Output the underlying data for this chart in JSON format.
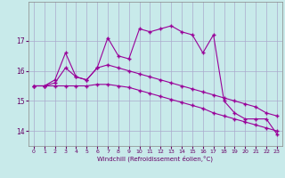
{
  "background_color": "#c8eaea",
  "grid_color": "#aaaacc",
  "line_color": "#990099",
  "marker": "+",
  "xlabel": "Windchill (Refroidissement éolien,°C)",
  "xlabel_color": "#660066",
  "tick_color": "#660066",
  "xlim": [
    -0.5,
    23.5
  ],
  "ylim": [
    13.5,
    18.3
  ],
  "yticks": [
    14,
    15,
    16,
    17
  ],
  "xticks": [
    0,
    1,
    2,
    3,
    4,
    5,
    6,
    7,
    8,
    9,
    10,
    11,
    12,
    13,
    14,
    15,
    16,
    17,
    18,
    19,
    20,
    21,
    22,
    23
  ],
  "series1_x": [
    0,
    1,
    2,
    3,
    4,
    5,
    6,
    7,
    8,
    9,
    10,
    11,
    12,
    13,
    14,
    15,
    16,
    17,
    18,
    19,
    20,
    21,
    22,
    23
  ],
  "series1_y": [
    15.5,
    15.5,
    15.7,
    16.6,
    15.8,
    15.7,
    16.1,
    17.1,
    16.5,
    16.4,
    17.4,
    17.3,
    17.4,
    17.5,
    17.3,
    17.2,
    16.6,
    17.2,
    15.0,
    14.6,
    14.4,
    14.4,
    14.4,
    13.9
  ],
  "series2_x": [
    0,
    1,
    2,
    3,
    4,
    5,
    6,
    7,
    8,
    9,
    10,
    11,
    12,
    13,
    14,
    15,
    16,
    17,
    18,
    19,
    20,
    21,
    22,
    23
  ],
  "series2_y": [
    15.5,
    15.5,
    15.6,
    16.1,
    15.8,
    15.7,
    16.1,
    16.2,
    16.1,
    16.0,
    15.9,
    15.8,
    15.7,
    15.6,
    15.5,
    15.4,
    15.3,
    15.2,
    15.1,
    15.0,
    14.9,
    14.8,
    14.6,
    14.5
  ],
  "series3_x": [
    0,
    1,
    2,
    3,
    4,
    5,
    6,
    7,
    8,
    9,
    10,
    11,
    12,
    13,
    14,
    15,
    16,
    17,
    18,
    19,
    20,
    21,
    22,
    23
  ],
  "series3_y": [
    15.5,
    15.5,
    15.5,
    15.5,
    15.5,
    15.5,
    15.55,
    15.55,
    15.5,
    15.45,
    15.35,
    15.25,
    15.15,
    15.05,
    14.95,
    14.85,
    14.75,
    14.6,
    14.5,
    14.4,
    14.3,
    14.2,
    14.1,
    14.0
  ]
}
